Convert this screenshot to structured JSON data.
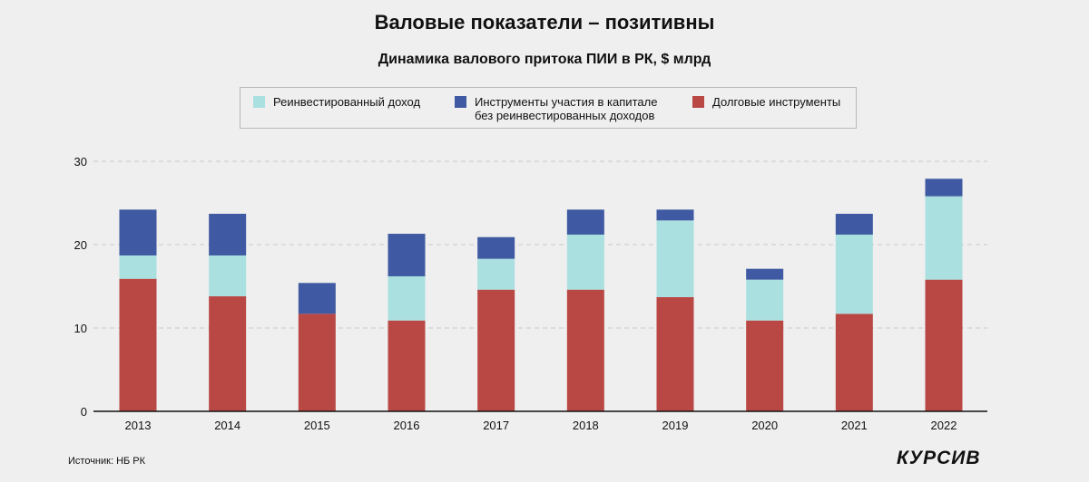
{
  "title": "Валовые показатели – позитивны",
  "chart_data": {
    "type": "bar",
    "stacked": true,
    "title": "Динамика валового притока ПИИ в РК, $ млрд",
    "categories": [
      "2013",
      "2014",
      "2015",
      "2016",
      "2017",
      "2018",
      "2019",
      "2020",
      "2021",
      "2022"
    ],
    "series": [
      {
        "name": "Долговые инструменты",
        "color": "#b94845",
        "values": [
          15.9,
          13.8,
          11.7,
          10.9,
          14.6,
          14.6,
          13.7,
          10.9,
          11.7,
          15.8
        ]
      },
      {
        "name": "Реинвестированный доход",
        "color": "#abe0e0",
        "values": [
          2.8,
          4.9,
          0,
          5.3,
          3.7,
          6.6,
          9.2,
          4.9,
          9.5,
          10.0
        ]
      },
      {
        "name": "Инструменты участия в капитале без реинвестированных доходов",
        "name_lines": [
          "Инструменты участия в капитале",
          "без реинвестированных доходов"
        ],
        "color": "#3f5aa2",
        "values": [
          5.5,
          5.0,
          3.7,
          5.1,
          2.6,
          3.0,
          1.3,
          1.3,
          2.5,
          2.1
        ]
      }
    ],
    "legend_order": [
      1,
      2,
      0
    ],
    "legend_position": "top",
    "ylim": [
      0,
      30
    ],
    "yticks": [
      0,
      10,
      20,
      30
    ],
    "grid": "horizontal dashed"
  },
  "source": "Источник: НБ РК",
  "logo": "КУРСИВ"
}
